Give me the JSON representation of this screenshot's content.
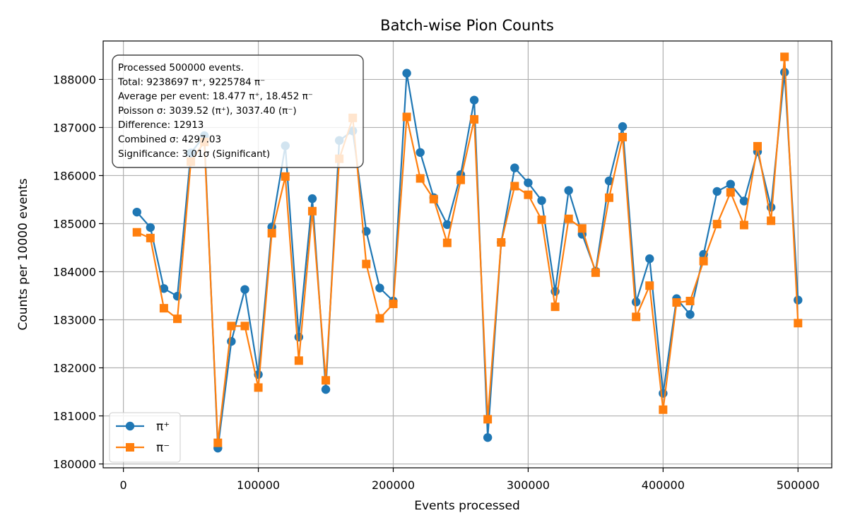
{
  "chart_data": {
    "type": "line",
    "title": "Batch-wise Pion Counts",
    "xlabel": "Events processed",
    "ylabel": "Counts per 10000 events",
    "xlim": [
      -15000,
      525000
    ],
    "ylim": [
      179920,
      188800
    ],
    "xticks": [
      0,
      100000,
      200000,
      300000,
      400000,
      500000
    ],
    "yticks": [
      180000,
      181000,
      182000,
      183000,
      184000,
      185000,
      186000,
      187000,
      188000
    ],
    "grid": true,
    "legend_position": "lower-left",
    "x": [
      10000,
      20000,
      30000,
      40000,
      50000,
      60000,
      70000,
      80000,
      90000,
      100000,
      110000,
      120000,
      130000,
      140000,
      150000,
      160000,
      170000,
      180000,
      190000,
      200000,
      210000,
      220000,
      230000,
      240000,
      250000,
      260000,
      270000,
      280000,
      290000,
      300000,
      310000,
      320000,
      330000,
      340000,
      350000,
      360000,
      370000,
      380000,
      390000,
      400000,
      410000,
      420000,
      430000,
      440000,
      450000,
      460000,
      470000,
      480000,
      490000,
      500000
    ],
    "series": [
      {
        "name": "π⁺",
        "color": "#1f77b4",
        "marker": "circle",
        "values": [
          185240,
          184920,
          183650,
          183490,
          186470,
          186830,
          180330,
          182550,
          183630,
          181860,
          184930,
          186620,
          182640,
          185520,
          181550,
          186730,
          186930,
          184840,
          183660,
          183390,
          188130,
          186480,
          185540,
          184980,
          186020,
          187570,
          180550,
          184610,
          186160,
          185850,
          185480,
          183590,
          185690,
          184780,
          184010,
          185890,
          187020,
          183370,
          184270,
          181470,
          183440,
          183110,
          184360,
          185670,
          185820,
          185470,
          186500,
          185340,
          188150,
          183410
        ]
      },
      {
        "name": "π⁻",
        "color": "#ff7f0e",
        "marker": "square",
        "values": [
          184820,
          184700,
          183240,
          183020,
          186290,
          186700,
          180440,
          182870,
          182870,
          181590,
          184800,
          185980,
          182150,
          185260,
          181740,
          186350,
          187200,
          184160,
          183030,
          183330,
          187220,
          185940,
          185510,
          184600,
          185910,
          187170,
          180930,
          184610,
          185780,
          185600,
          185080,
          183270,
          185100,
          184900,
          183980,
          185540,
          186800,
          183060,
          183710,
          181130,
          183360,
          183390,
          184220,
          184990,
          185650,
          184970,
          186610,
          185060,
          188470,
          182930
        ]
      }
    ],
    "annotation": [
      "Processed 500000 events.",
      "Total: 9238697 π⁺, 9225784 π⁻",
      "Average per event: 18.477 π⁺, 18.452 π⁻",
      "Poisson σ: 3039.52 (π⁺), 3037.40 (π⁻)",
      "Difference: 12913",
      "Combined σ: 4297.03",
      "Significance: 3.01σ (Significant)"
    ]
  }
}
